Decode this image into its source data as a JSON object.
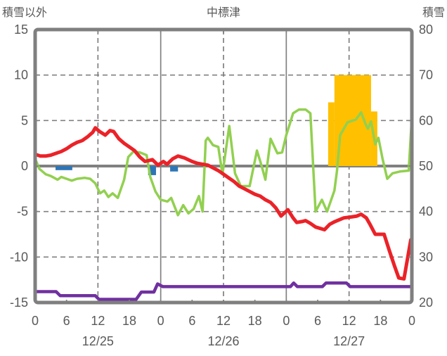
{
  "header": {
    "left_axis_title": "積雪以外",
    "station_title": "中標津",
    "right_axis_title": "積雪"
  },
  "chart_data": {
    "type": "line",
    "title": "中標津",
    "style": {
      "grid_color": "#808080",
      "border_color": "#7f7f7f",
      "text_color": "#595959",
      "zero_line_color": "#808080"
    },
    "left_axis": {
      "title": "積雪以外",
      "min": -15,
      "max": 15,
      "ticks": [
        15,
        10,
        5,
        0,
        -5,
        -10,
        -15
      ]
    },
    "right_axis": {
      "title": "積雪",
      "min": 20,
      "max": 80,
      "ticks": [
        80,
        70,
        60,
        50,
        40,
        30,
        20
      ]
    },
    "x_axis": {
      "min_hour": 0,
      "max_hour": 72,
      "tick_interval": 6,
      "hour_labels": [
        "0",
        "6",
        "12",
        "18",
        "0",
        "6",
        "12",
        "18",
        "0",
        "6",
        "12",
        "18",
        "0"
      ],
      "date_labels": [
        "12/25",
        "12/26",
        "12/27"
      ]
    },
    "gridlines": {
      "horizontal_dashed": [
        10,
        5,
        -5,
        -10
      ],
      "vertical_dashed_hours": [
        12,
        36,
        60
      ],
      "vertical_solid_hours": [
        24,
        48
      ],
      "zero_line": 0
    },
    "ticks": {
      "top_hours": [
        12,
        24,
        36,
        48,
        60
      ],
      "side_values": [
        10,
        5,
        0,
        -5,
        -10
      ]
    },
    "bars": [
      {
        "name": "bars-orange-snowfall",
        "axis": "left",
        "color": "#FFC000",
        "segments": [
          {
            "from_hour": 56.0,
            "to_hour": 57.2,
            "value": 7
          },
          {
            "from_hour": 57.2,
            "to_hour": 64.2,
            "value": 10
          },
          {
            "from_hour": 64.2,
            "to_hour": 65.4,
            "value": 6
          }
        ]
      },
      {
        "name": "bars-blue-precipitation",
        "axis": "left",
        "color": "#2E75B6",
        "segments": [
          {
            "from_hour": 3.9,
            "to_hour": 7.1,
            "value": -0.45
          },
          {
            "from_hour": 21.6,
            "to_hour": 23.1,
            "value": -1.0
          },
          {
            "from_hour": 25.8,
            "to_hour": 27.3,
            "value": -0.6
          }
        ]
      }
    ],
    "series": [
      {
        "name": "series-green",
        "axis": "left",
        "color": "#92D050",
        "stroke_width": 3.5,
        "points": [
          [
            0,
            0.8
          ],
          [
            0.8,
            -0.3
          ],
          [
            2,
            -0.9
          ],
          [
            3,
            -1.1
          ],
          [
            4.3,
            -1.5
          ],
          [
            5,
            -1.2
          ],
          [
            6,
            -1.4
          ],
          [
            7,
            -1.6
          ],
          [
            8,
            -1.4
          ],
          [
            9.5,
            -1.3
          ],
          [
            10.5,
            -1.4
          ],
          [
            11.5,
            -1.9
          ],
          [
            12.4,
            -3.0
          ],
          [
            13.2,
            -2.7
          ],
          [
            14,
            -3.4
          ],
          [
            14.8,
            -3.0
          ],
          [
            15.8,
            -3.5
          ],
          [
            17,
            -1.5
          ],
          [
            17.8,
            1.0
          ],
          [
            18.8,
            1.6
          ],
          [
            20,
            1.5
          ],
          [
            21.3,
            1.2
          ],
          [
            22,
            -1.2
          ],
          [
            23,
            -2.8
          ],
          [
            24,
            -3.7
          ],
          [
            25.3,
            -3.9
          ],
          [
            26,
            -3.5
          ],
          [
            27.3,
            -5.4
          ],
          [
            28.3,
            -4.3
          ],
          [
            29.3,
            -5.2
          ],
          [
            30.3,
            -4.7
          ],
          [
            31.3,
            -3.3
          ],
          [
            32,
            -5.0
          ],
          [
            32.6,
            2.8
          ],
          [
            33,
            3.1
          ],
          [
            34,
            2.3
          ],
          [
            35,
            2.1
          ],
          [
            35.8,
            -0.9
          ],
          [
            37.1,
            4.4
          ],
          [
            38.2,
            -0.8
          ],
          [
            39.3,
            -2.2
          ],
          [
            41,
            -2.2
          ],
          [
            42.4,
            1.7
          ],
          [
            43.3,
            0.0
          ],
          [
            44,
            -1.5
          ],
          [
            45,
            3.0
          ],
          [
            46.3,
            1.4
          ],
          [
            47.2,
            1.5
          ],
          [
            48,
            3.4
          ],
          [
            48.6,
            4.5
          ],
          [
            49.3,
            5.8
          ],
          [
            50.4,
            6.2
          ],
          [
            51.7,
            6.2
          ],
          [
            52.6,
            5.8
          ],
          [
            53.6,
            -5.0
          ],
          [
            54.8,
            -3.7
          ],
          [
            55.8,
            -5.0
          ],
          [
            57.2,
            -2.7
          ],
          [
            57.7,
            -0.5
          ],
          [
            58.3,
            3.4
          ],
          [
            59.7,
            4.8
          ],
          [
            61.3,
            5.1
          ],
          [
            62.3,
            5.9
          ],
          [
            63.1,
            4.7
          ],
          [
            63.6,
            4.1
          ],
          [
            64.2,
            4.9
          ],
          [
            65,
            2.4
          ],
          [
            65.6,
            3.1
          ],
          [
            66.4,
            0.8
          ],
          [
            67.3,
            -1.4
          ],
          [
            68.3,
            -0.8
          ],
          [
            69.7,
            -0.6
          ],
          [
            71.4,
            -0.5
          ],
          [
            71.9,
            4.4
          ]
        ]
      },
      {
        "name": "series-red-temperature",
        "axis": "left",
        "color": "#EB2228",
        "stroke_width": 5,
        "points": [
          [
            0,
            1.3
          ],
          [
            1,
            1.1
          ],
          [
            2,
            1.1
          ],
          [
            3,
            1.2
          ],
          [
            4,
            1.4
          ],
          [
            5,
            1.6
          ],
          [
            6,
            1.9
          ],
          [
            7,
            2.3
          ],
          [
            8,
            2.6
          ],
          [
            9,
            2.8
          ],
          [
            10,
            3.2
          ],
          [
            11,
            3.7
          ],
          [
            11.5,
            4.2
          ],
          [
            12.3,
            3.8
          ],
          [
            13.4,
            3.4
          ],
          [
            14.3,
            3.9
          ],
          [
            15,
            3.8
          ],
          [
            16,
            3.0
          ],
          [
            17,
            2.5
          ],
          [
            18,
            2.1
          ],
          [
            19,
            1.7
          ],
          [
            20,
            1.0
          ],
          [
            21,
            0.5
          ],
          [
            22.4,
            0.7
          ],
          [
            23.5,
            0.1
          ],
          [
            24.5,
            0.5
          ],
          [
            25.2,
            0.2
          ],
          [
            26.3,
            0.8
          ],
          [
            27.3,
            1.1
          ],
          [
            28.5,
            0.9
          ],
          [
            30,
            0.5
          ],
          [
            31,
            0.3
          ],
          [
            32,
            0.2
          ],
          [
            33,
            0.1
          ],
          [
            34,
            -0.2
          ],
          [
            35,
            -0.5
          ],
          [
            36,
            -0.9
          ],
          [
            37,
            -1.3
          ],
          [
            38,
            -1.7
          ],
          [
            39,
            -2.2
          ],
          [
            40,
            -2.5
          ],
          [
            41,
            -2.8
          ],
          [
            42,
            -3.1
          ],
          [
            43,
            -3.3
          ],
          [
            44,
            -3.7
          ],
          [
            45,
            -4.0
          ],
          [
            46,
            -4.6
          ],
          [
            47,
            -5.5
          ],
          [
            48.3,
            -4.8
          ],
          [
            49.3,
            -5.7
          ],
          [
            50,
            -6.2
          ],
          [
            51,
            -6.1
          ],
          [
            51.7,
            -6.0
          ],
          [
            52.6,
            -6.3
          ],
          [
            53.6,
            -6.7
          ],
          [
            55.3,
            -7.0
          ],
          [
            56.3,
            -6.4
          ],
          [
            57.3,
            -6.1
          ],
          [
            59,
            -5.7
          ],
          [
            60.4,
            -5.6
          ],
          [
            61.5,
            -5.5
          ],
          [
            62.3,
            -5.3
          ],
          [
            63.3,
            -5.7
          ],
          [
            64,
            -6.4
          ],
          [
            65,
            -7.5
          ],
          [
            66.7,
            -7.5
          ],
          [
            67.7,
            -9.3
          ],
          [
            68.7,
            -11.0
          ],
          [
            69.5,
            -12.3
          ],
          [
            70.5,
            -12.4
          ],
          [
            71.8,
            -8.1
          ]
        ]
      },
      {
        "name": "series-purple-snow-depth",
        "axis": "right",
        "color": "#7030A0",
        "stroke_width": 4.5,
        "points": [
          [
            0,
            22.4
          ],
          [
            4,
            22.4
          ],
          [
            4.8,
            21.5
          ],
          [
            11.5,
            21.5
          ],
          [
            12.2,
            20.7
          ],
          [
            19.3,
            20.7
          ],
          [
            20.3,
            22.3
          ],
          [
            22.7,
            22.3
          ],
          [
            23.4,
            24.1
          ],
          [
            24.4,
            23.5
          ],
          [
            48.8,
            23.5
          ],
          [
            49.4,
            24.3
          ],
          [
            50.1,
            23.5
          ],
          [
            54.9,
            23.5
          ],
          [
            55.6,
            24.3
          ],
          [
            59.5,
            24.3
          ],
          [
            60.2,
            23.5
          ],
          [
            72,
            23.5
          ]
        ]
      }
    ]
  }
}
